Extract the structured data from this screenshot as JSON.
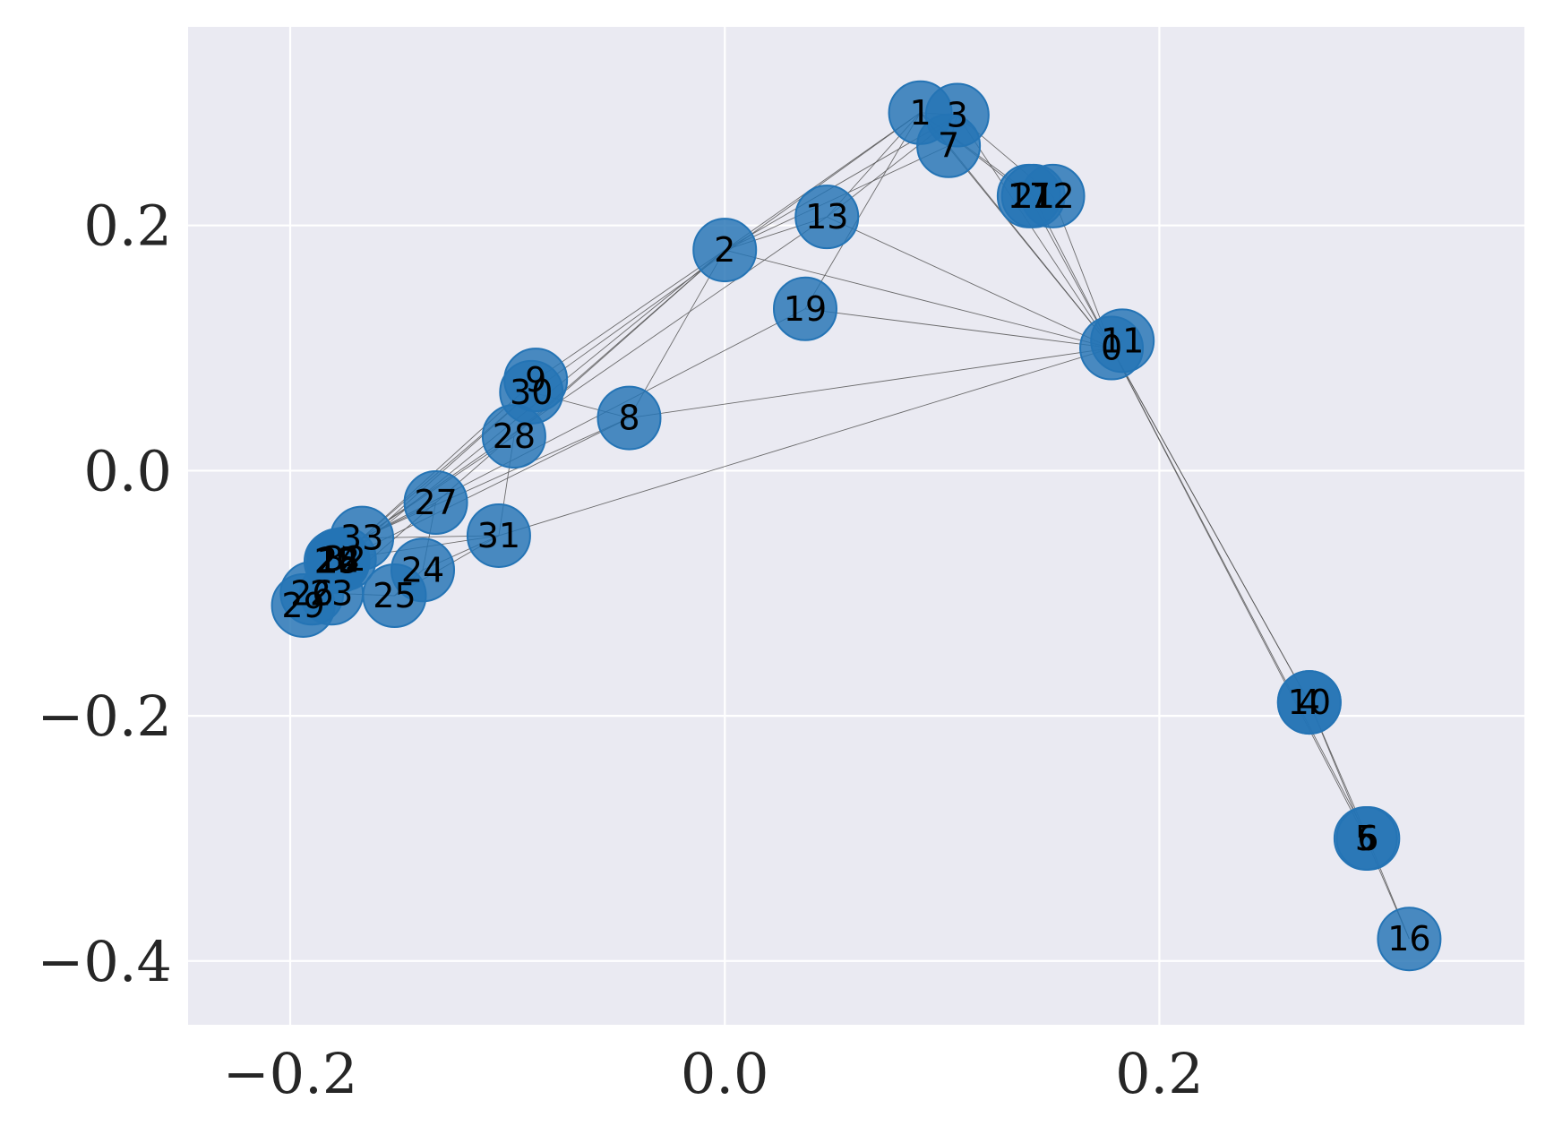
{
  "chart_data": {
    "type": "scatter",
    "title": "",
    "xlabel": "",
    "ylabel": "",
    "xlim": [
      -0.247,
      0.368
    ],
    "ylim": [
      -0.452,
      0.362
    ],
    "grid": true,
    "background": "#eaeaf2",
    "grid_color": "#ffffff",
    "node_color": "#2474b5",
    "edge_color": "#555555",
    "x_ticks": [
      {
        "value": -0.2,
        "label": "−0.2"
      },
      {
        "value": 0.0,
        "label": "0.0"
      },
      {
        "value": 0.2,
        "label": "0.2"
      }
    ],
    "y_ticks": [
      {
        "value": 0.2,
        "label": "0.2"
      },
      {
        "value": 0.0,
        "label": "0.0"
      },
      {
        "value": -0.2,
        "label": "−0.2"
      },
      {
        "value": -0.4,
        "label": "−0.4"
      }
    ],
    "nodes": [
      {
        "id": "0",
        "x": 0.178,
        "y": 0.1
      },
      {
        "id": "1",
        "x": 0.09,
        "y": 0.292
      },
      {
        "id": "2",
        "x": 0.0,
        "y": 0.18
      },
      {
        "id": "3",
        "x": 0.107,
        "y": 0.29
      },
      {
        "id": "4",
        "x": 0.269,
        "y": -0.189
      },
      {
        "id": "5",
        "x": 0.295,
        "y": -0.3
      },
      {
        "id": "6",
        "x": 0.296,
        "y": -0.3
      },
      {
        "id": "7",
        "x": 0.103,
        "y": 0.265
      },
      {
        "id": "8",
        "x": -0.044,
        "y": 0.043
      },
      {
        "id": "9",
        "x": -0.087,
        "y": 0.074
      },
      {
        "id": "10",
        "x": 0.269,
        "y": -0.189
      },
      {
        "id": "11",
        "x": 0.183,
        "y": 0.106
      },
      {
        "id": "12",
        "x": 0.151,
        "y": 0.224
      },
      {
        "id": "13",
        "x": 0.047,
        "y": 0.207
      },
      {
        "id": "14",
        "x": -0.178,
        "y": -0.073
      },
      {
        "id": "15",
        "x": -0.178,
        "y": -0.074
      },
      {
        "id": "16",
        "x": 0.315,
        "y": -0.382
      },
      {
        "id": "17",
        "x": 0.14,
        "y": 0.224
      },
      {
        "id": "18",
        "x": -0.178,
        "y": -0.073
      },
      {
        "id": "19",
        "x": 0.037,
        "y": 0.132
      },
      {
        "id": "20",
        "x": -0.179,
        "y": -0.074
      },
      {
        "id": "21",
        "x": 0.142,
        "y": 0.224
      },
      {
        "id": "22",
        "x": -0.178,
        "y": -0.073
      },
      {
        "id": "23",
        "x": -0.181,
        "y": -0.1
      },
      {
        "id": "24",
        "x": -0.139,
        "y": -0.081
      },
      {
        "id": "25",
        "x": -0.152,
        "y": -0.102
      },
      {
        "id": "26",
        "x": -0.19,
        "y": -0.1
      },
      {
        "id": "27",
        "x": -0.133,
        "y": -0.026
      },
      {
        "id": "28",
        "x": -0.097,
        "y": 0.028
      },
      {
        "id": "29",
        "x": -0.194,
        "y": -0.11
      },
      {
        "id": "30",
        "x": -0.089,
        "y": 0.064
      },
      {
        "id": "31",
        "x": -0.104,
        "y": -0.053
      },
      {
        "id": "32",
        "x": -0.175,
        "y": -0.072
      },
      {
        "id": "33",
        "x": -0.167,
        "y": -0.055
      }
    ],
    "edges": [
      [
        "0",
        "1"
      ],
      [
        "0",
        "2"
      ],
      [
        "0",
        "3"
      ],
      [
        "0",
        "4"
      ],
      [
        "0",
        "5"
      ],
      [
        "0",
        "6"
      ],
      [
        "0",
        "7"
      ],
      [
        "0",
        "8"
      ],
      [
        "0",
        "10"
      ],
      [
        "0",
        "11"
      ],
      [
        "0",
        "12"
      ],
      [
        "0",
        "13"
      ],
      [
        "0",
        "17"
      ],
      [
        "0",
        "19"
      ],
      [
        "0",
        "21"
      ],
      [
        "0",
        "31"
      ],
      [
        "1",
        "2"
      ],
      [
        "1",
        "3"
      ],
      [
        "1",
        "7"
      ],
      [
        "1",
        "13"
      ],
      [
        "1",
        "17"
      ],
      [
        "1",
        "19"
      ],
      [
        "1",
        "21"
      ],
      [
        "1",
        "30"
      ],
      [
        "2",
        "3"
      ],
      [
        "2",
        "7"
      ],
      [
        "2",
        "8"
      ],
      [
        "2",
        "9"
      ],
      [
        "2",
        "13"
      ],
      [
        "2",
        "27"
      ],
      [
        "2",
        "28"
      ],
      [
        "2",
        "32"
      ],
      [
        "3",
        "7"
      ],
      [
        "3",
        "12"
      ],
      [
        "3",
        "13"
      ],
      [
        "4",
        "6"
      ],
      [
        "4",
        "10"
      ],
      [
        "5",
        "6"
      ],
      [
        "5",
        "10"
      ],
      [
        "5",
        "16"
      ],
      [
        "6",
        "16"
      ],
      [
        "8",
        "30"
      ],
      [
        "8",
        "32"
      ],
      [
        "8",
        "33"
      ],
      [
        "9",
        "33"
      ],
      [
        "13",
        "33"
      ],
      [
        "19",
        "33"
      ],
      [
        "20",
        "33"
      ],
      [
        "23",
        "25"
      ],
      [
        "23",
        "27"
      ],
      [
        "23",
        "29"
      ],
      [
        "23",
        "32"
      ],
      [
        "23",
        "33"
      ],
      [
        "24",
        "25"
      ],
      [
        "24",
        "27"
      ],
      [
        "24",
        "31"
      ],
      [
        "25",
        "31"
      ],
      [
        "26",
        "29"
      ],
      [
        "26",
        "33"
      ],
      [
        "27",
        "33"
      ],
      [
        "28",
        "31"
      ],
      [
        "28",
        "33"
      ],
      [
        "29",
        "32"
      ],
      [
        "29",
        "33"
      ],
      [
        "30",
        "32"
      ],
      [
        "30",
        "33"
      ],
      [
        "31",
        "32"
      ],
      [
        "31",
        "33"
      ],
      [
        "32",
        "33"
      ],
      [
        "14",
        "32"
      ],
      [
        "14",
        "33"
      ],
      [
        "15",
        "32"
      ],
      [
        "15",
        "33"
      ],
      [
        "18",
        "32"
      ],
      [
        "18",
        "33"
      ],
      [
        "22",
        "32"
      ],
      [
        "22",
        "33"
      ]
    ]
  }
}
